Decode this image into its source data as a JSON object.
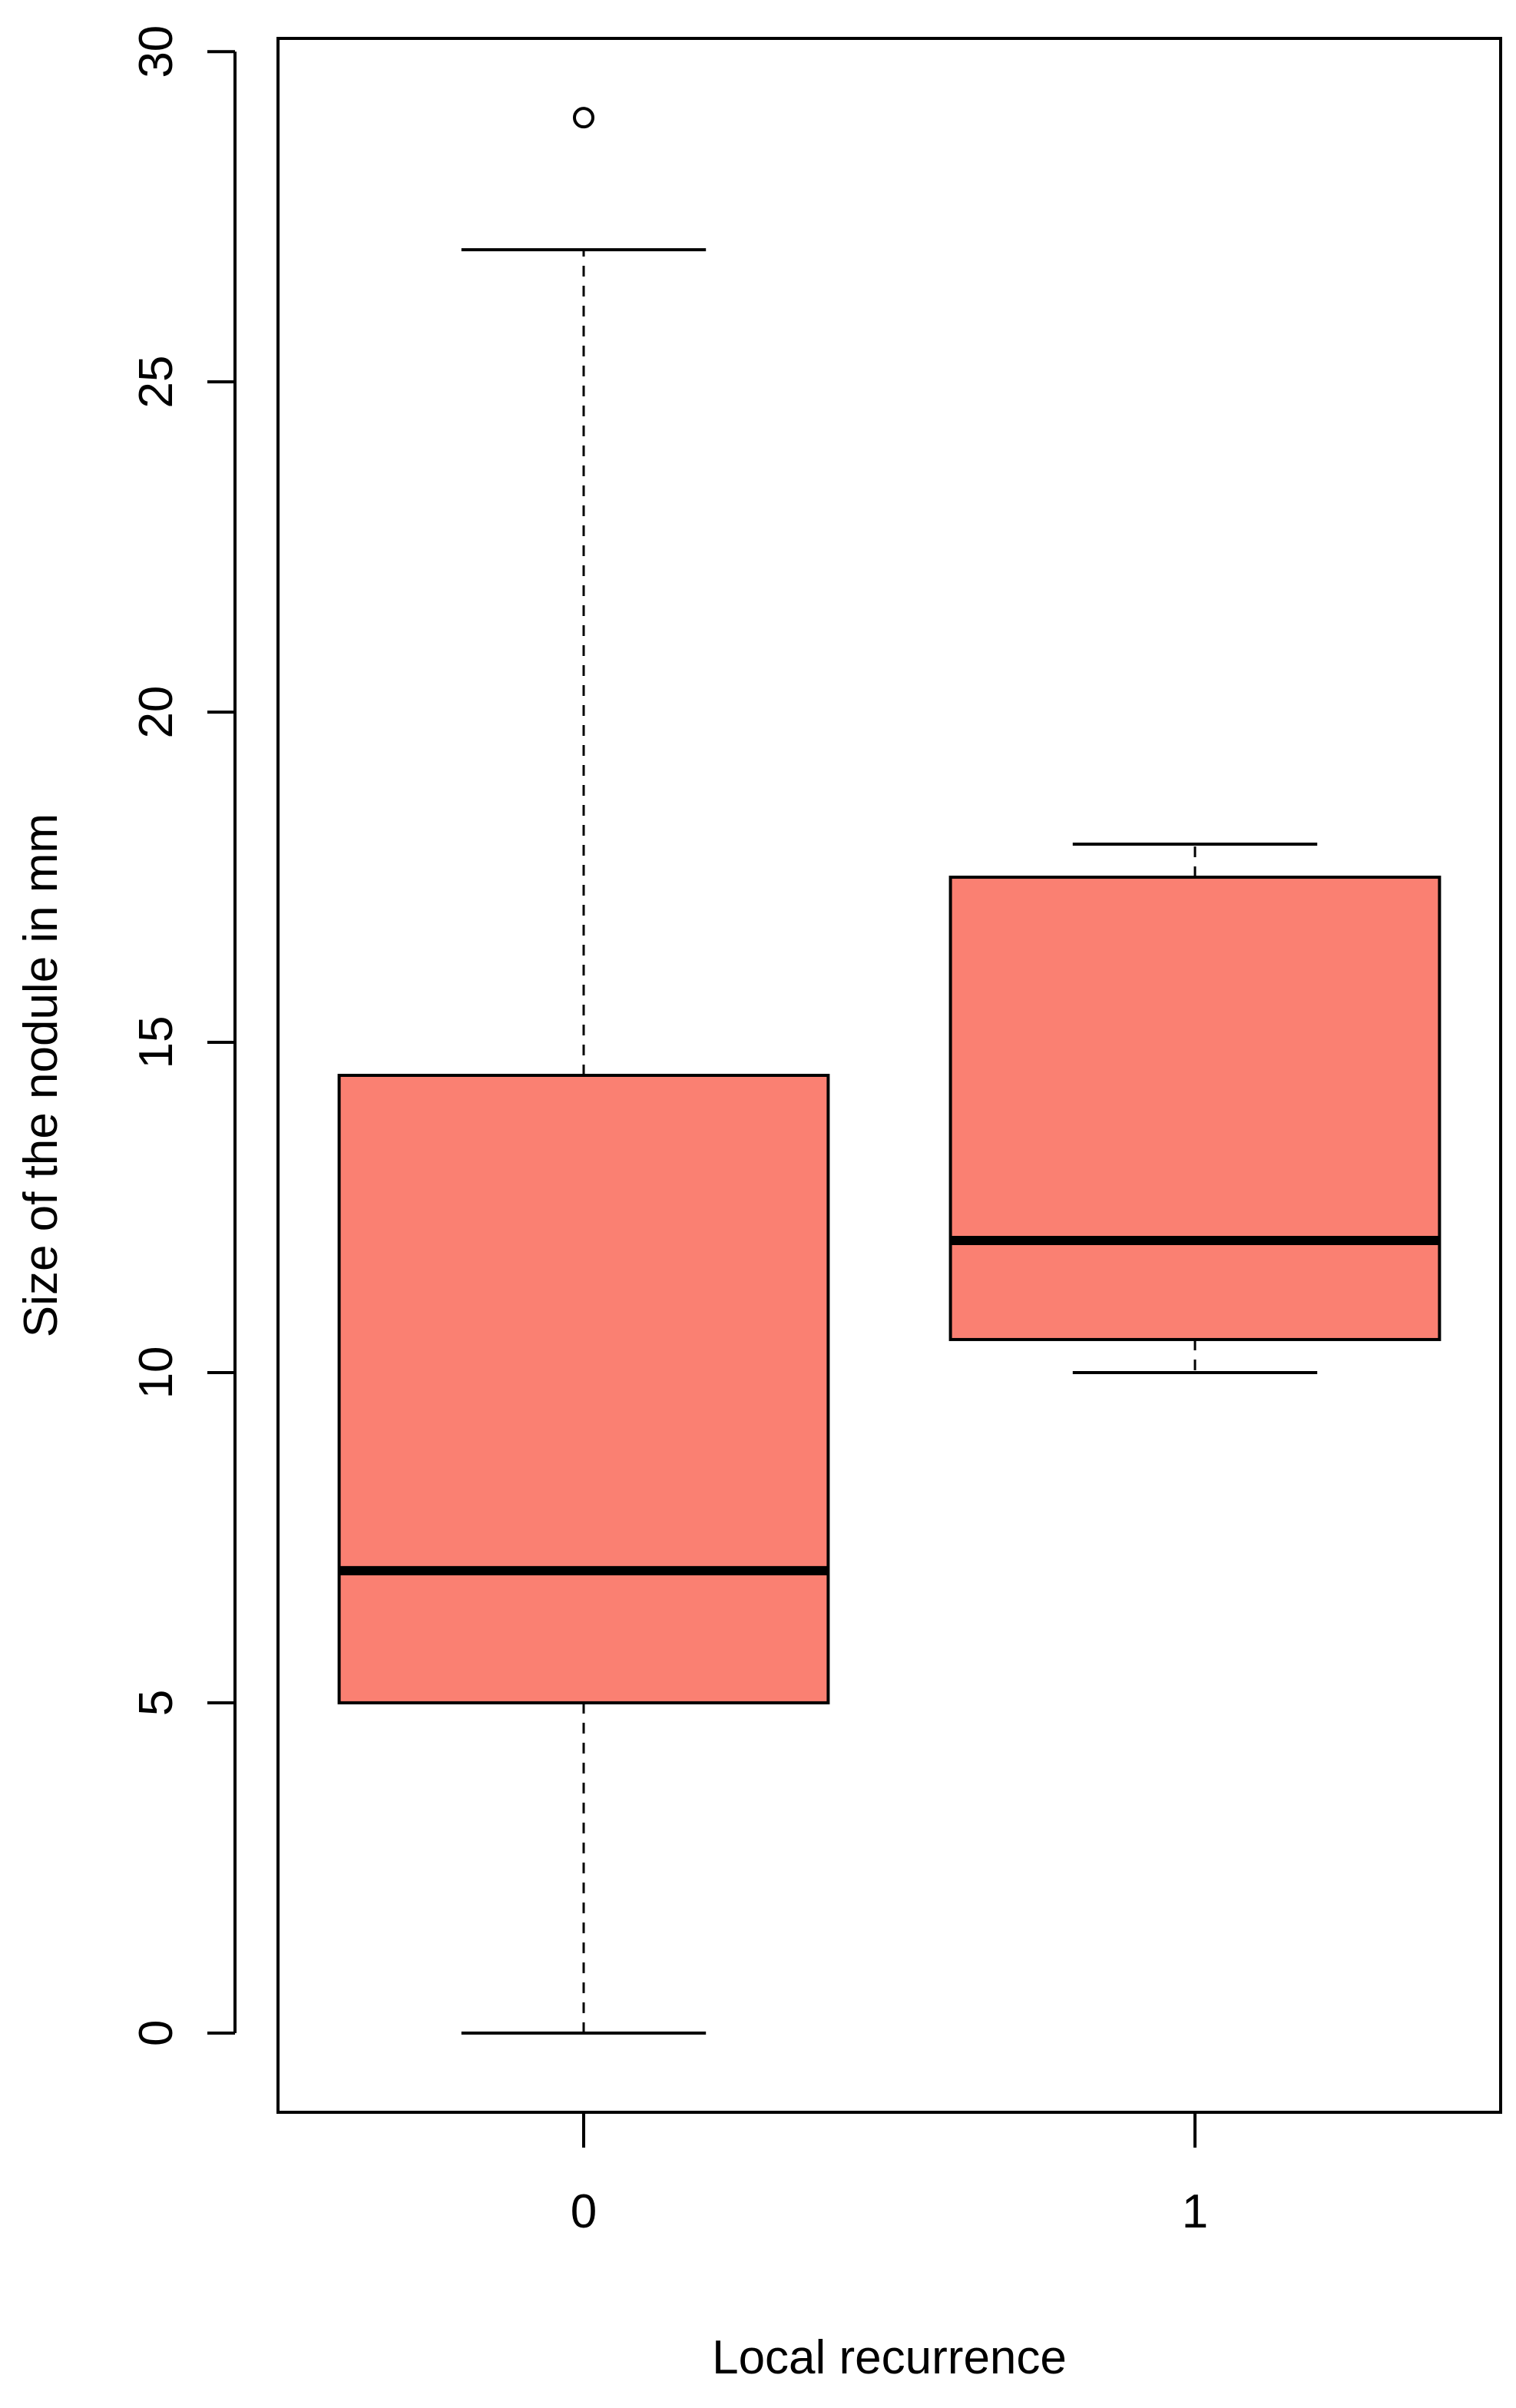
{
  "chart_data": {
    "type": "boxplot",
    "title": "",
    "xlabel": "Local recurrence",
    "ylabel": "Size of the nodule in mm",
    "ylim": [
      -1.2,
      30.2
    ],
    "yticks": [
      "0",
      "5",
      "10",
      "15",
      "20",
      "25",
      "30"
    ],
    "categories": [
      "0",
      "1"
    ],
    "box_fill": "#FA8072",
    "grid": false,
    "boxes": [
      {
        "category": "0",
        "whisker_low": 0,
        "q1": 5,
        "median": 7,
        "q3": 14.5,
        "whisker_high": 27,
        "outliers": [
          29
        ]
      },
      {
        "category": "1",
        "whisker_low": 10,
        "q1": 10.5,
        "median": 12,
        "q3": 17.5,
        "whisker_high": 18,
        "outliers": []
      }
    ]
  }
}
